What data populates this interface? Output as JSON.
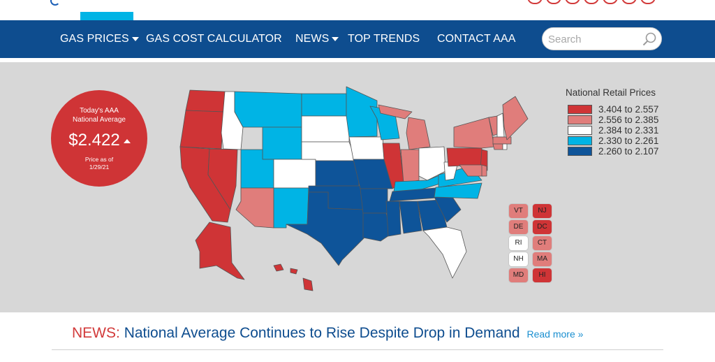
{
  "header": {
    "social_icons": [
      "social-icon-1",
      "social-icon-2",
      "social-icon-3",
      "social-icon-4",
      "social-icon-5",
      "social-icon-6",
      "social-icon-7"
    ]
  },
  "nav": {
    "items": [
      {
        "label": "GAS PRICES",
        "has_dropdown": true
      },
      {
        "label": "GAS COST CALCULATOR",
        "has_dropdown": false
      },
      {
        "label": "NEWS",
        "has_dropdown": true
      },
      {
        "label": "TOP TRENDS",
        "has_dropdown": false
      },
      {
        "label": "CONTACT AAA",
        "has_dropdown": false
      }
    ],
    "search_placeholder": "Search"
  },
  "national_average": {
    "title_line1": "Today's AAA",
    "title_line2": "National Average",
    "price": "$2.422",
    "trend": "up",
    "as_of_line1": "Price as of",
    "as_of_line2": "1/29/21"
  },
  "legend": {
    "title": "National Retail Prices",
    "ranges": [
      {
        "label": "3.404 to 2.557",
        "color": "#cf3436"
      },
      {
        "label": "2.556 to 2.385",
        "color": "#e07d7b"
      },
      {
        "label": "2.384 to 2.331",
        "color": "#ffffff"
      },
      {
        "label": "2.330 to 2.261",
        "color": "#00b4e5"
      },
      {
        "label": "2.260 to 2.107",
        "color": "#0e5499"
      }
    ]
  },
  "small_states": [
    {
      "abbr": "VT",
      "tier": 1
    },
    {
      "abbr": "NJ",
      "tier": 0
    },
    {
      "abbr": "DE",
      "tier": 1
    },
    {
      "abbr": "DC",
      "tier": 0
    },
    {
      "abbr": "RI",
      "tier": 2
    },
    {
      "abbr": "CT",
      "tier": 1
    },
    {
      "abbr": "NH",
      "tier": 2
    },
    {
      "abbr": "MA",
      "tier": 1
    },
    {
      "abbr": "MD",
      "tier": 1
    },
    {
      "abbr": "HI",
      "tier": 0
    }
  ],
  "news": {
    "label": "NEWS:",
    "headline": "National Average Continues to Rise Despite Drop in Demand",
    "read_more": "Read more »"
  }
}
